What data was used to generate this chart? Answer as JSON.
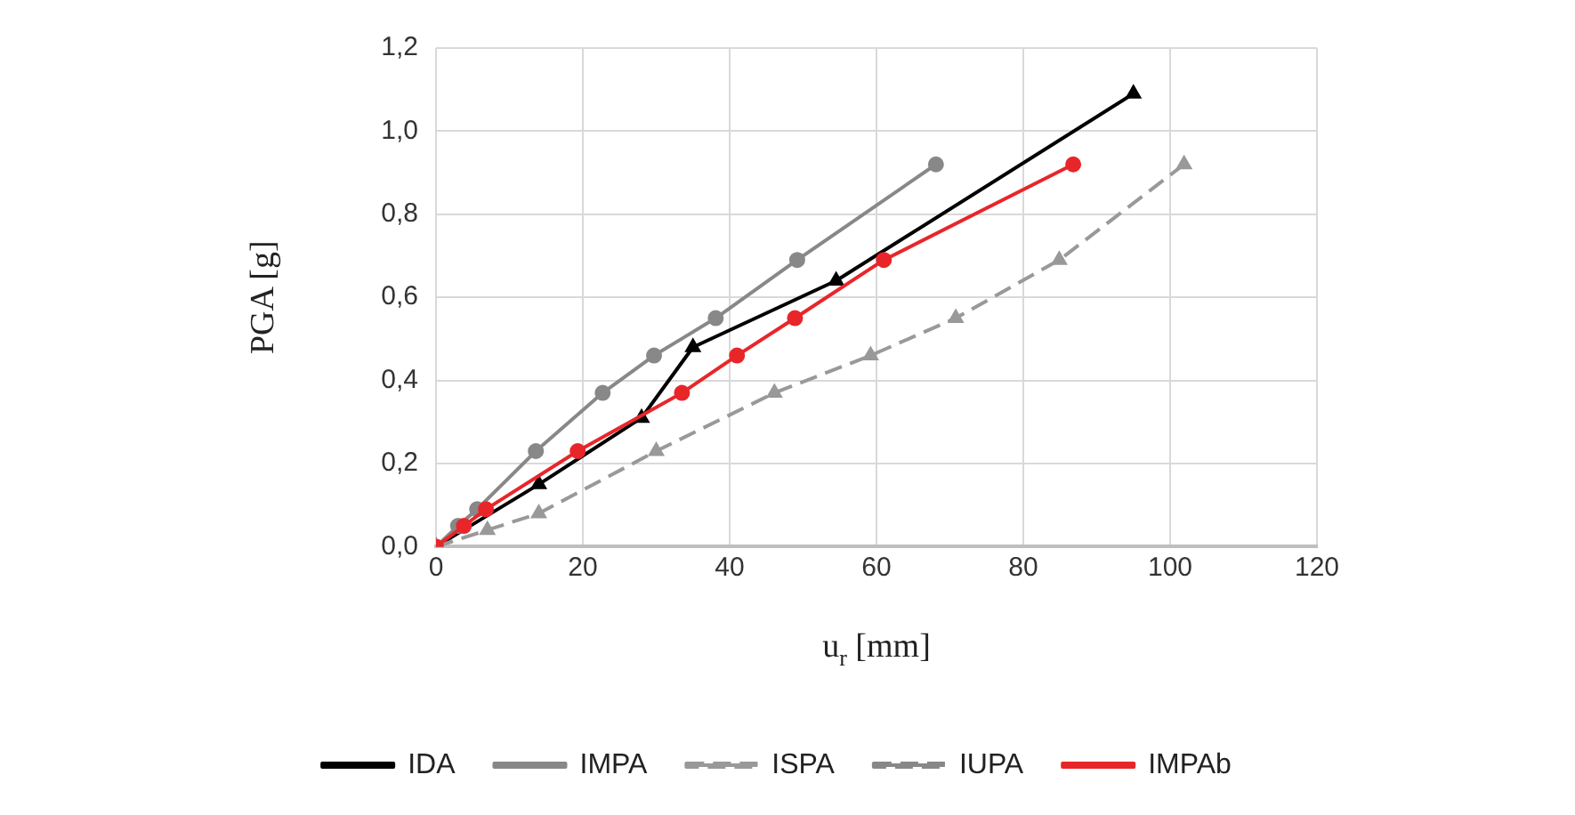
{
  "chart_data": {
    "type": "line",
    "xlabel": "u$_{r}$ [mm]",
    "ylabel": "PGA [g]",
    "xlim": [
      0,
      120
    ],
    "xticks": [
      0,
      20,
      40,
      60,
      80,
      100,
      120
    ],
    "ylim": [
      0,
      1.2
    ],
    "yticks": [
      {
        "value": 0,
        "label": "0,0"
      },
      {
        "value": 0.2,
        "label": "0,2"
      },
      {
        "value": 0.4,
        "label": "0,4"
      },
      {
        "value": 0.6,
        "label": "0,6"
      },
      {
        "value": 0.8,
        "label": "0,8"
      },
      {
        "value": 1,
        "label": "1,0"
      },
      {
        "value": 1.2,
        "label": "1,2"
      }
    ],
    "grid": true,
    "legend": "bottom",
    "series": [
      {
        "name": "IDA",
        "color": "#000000",
        "marker": "triangle",
        "line_style": "solid",
        "x": [
          0,
          14,
          28,
          35,
          54.5,
          95
        ],
        "values": [
          0,
          0.15,
          0.31,
          0.48,
          0.64,
          1.09
        ]
      },
      {
        "name": "IMPA",
        "color": "#888888",
        "marker": "circle",
        "line_style": "solid",
        "x": [
          0,
          3,
          5.6,
          13.6,
          22.7,
          29.7,
          38.1,
          49.2,
          68.1
        ],
        "values": [
          0,
          0.05,
          0.09,
          0.23,
          0.37,
          0.46,
          0.55,
          0.69,
          0.92
        ]
      },
      {
        "name": "ISPA",
        "color": "#999999",
        "marker": "triangle",
        "line_style": "dashed",
        "x": [
          0,
          7,
          14,
          30,
          46.1,
          59.2,
          70.8,
          84.9,
          101.9
        ],
        "values": [
          0,
          0.04,
          0.08,
          0.23,
          0.37,
          0.46,
          0.55,
          0.69,
          0.92
        ]
      },
      {
        "name": "IUPA",
        "color": "#888888",
        "marker": "square",
        "line_style": "dashed"
      },
      {
        "name": "IMPAb",
        "color": "#e8262a",
        "marker": "circle",
        "line_style": "solid",
        "x": [
          0,
          3.8,
          6.8,
          19.3,
          33.5,
          41,
          48.9,
          61,
          86.8
        ],
        "values": [
          0,
          0.05,
          0.09,
          0.23,
          0.37,
          0.46,
          0.55,
          0.69,
          0.92
        ]
      }
    ]
  }
}
